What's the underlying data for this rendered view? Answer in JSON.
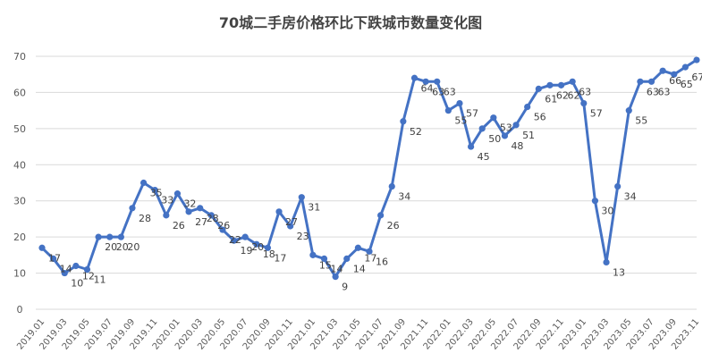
{
  "chart_data": {
    "type": "line",
    "title": "70城二手房价格环比下跌城市数量变化图",
    "xlabel": "",
    "ylabel": "",
    "ylim": [
      0,
      70
    ],
    "yticks": [
      0,
      10,
      20,
      30,
      40,
      50,
      60,
      70
    ],
    "grid": true,
    "legend": "none",
    "color": "#4472C4",
    "xtick_labels": [
      "2019.01",
      "2019.03",
      "2019.05",
      "2019.07",
      "2019.09",
      "2019.11",
      "2020.01",
      "2020.03",
      "2020.05",
      "2020.07",
      "2020.09",
      "2020.11",
      "2021.01",
      "2021.03",
      "2021.05",
      "2021.07",
      "2021.09",
      "2021.11",
      "2022.01",
      "2022.03",
      "2022.05",
      "2022.07",
      "2022.09",
      "2022.11",
      "2023.01",
      "2023.03",
      "2023.05",
      "2023.07",
      "2023.09",
      "2023.11"
    ],
    "series": [
      {
        "values": [
          17,
          14,
          10,
          12,
          11,
          20,
          20,
          20,
          28,
          35,
          33,
          26,
          32,
          27,
          28,
          26,
          22,
          19,
          20,
          18,
          17,
          27,
          23,
          31,
          15,
          14,
          9,
          14,
          17,
          16,
          26,
          34,
          52,
          64,
          63,
          63,
          55,
          57,
          45,
          50,
          53,
          48,
          51,
          56,
          61,
          62,
          62,
          63,
          57,
          30,
          13,
          34,
          55,
          63,
          63,
          66,
          65,
          67,
          69
        ]
      }
    ]
  }
}
